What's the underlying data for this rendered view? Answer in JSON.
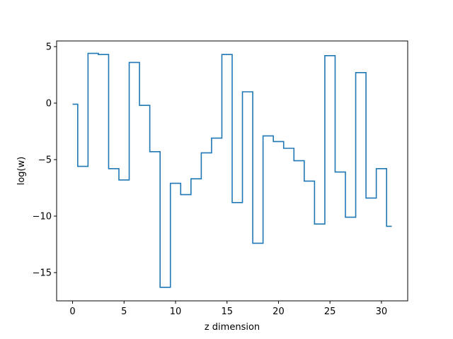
{
  "chart_data": {
    "type": "line",
    "drawstyle": "steps-mid",
    "title": "",
    "xlabel": "z dimension",
    "ylabel": "log(w)",
    "xlim": [
      -1.55,
      32.55
    ],
    "ylim": [
      -17.5,
      5.5
    ],
    "xticks": [
      0,
      5,
      10,
      15,
      20,
      25,
      30
    ],
    "yticks": [
      5,
      0,
      -5,
      -10,
      -15
    ],
    "ytick_labels": [
      "5",
      "0",
      "−5",
      "−10",
      "−15"
    ],
    "grid": false,
    "legend": "none",
    "colors": {
      "series": "#1f77b4",
      "axes": "#000000",
      "background": "#ffffff"
    },
    "series": [
      {
        "x": [
          0,
          1,
          2,
          3,
          4,
          5,
          6,
          7,
          8,
          9,
          10,
          11,
          12,
          13,
          14,
          15,
          16,
          17,
          18,
          19,
          20,
          21,
          22,
          23,
          24,
          25,
          26,
          27,
          28,
          29,
          30,
          31
        ],
        "values": [
          -0.1,
          -5.6,
          4.4,
          4.3,
          -5.8,
          -6.8,
          3.6,
          -0.2,
          -4.3,
          -16.3,
          -7.1,
          -8.1,
          -6.7,
          -4.4,
          -3.1,
          4.3,
          -8.8,
          1.0,
          -12.4,
          -2.9,
          -3.4,
          -4.0,
          -5.1,
          -6.9,
          -10.7,
          4.2,
          -6.1,
          -10.1,
          2.7,
          -8.4,
          -5.8,
          -10.9
        ]
      }
    ]
  }
}
